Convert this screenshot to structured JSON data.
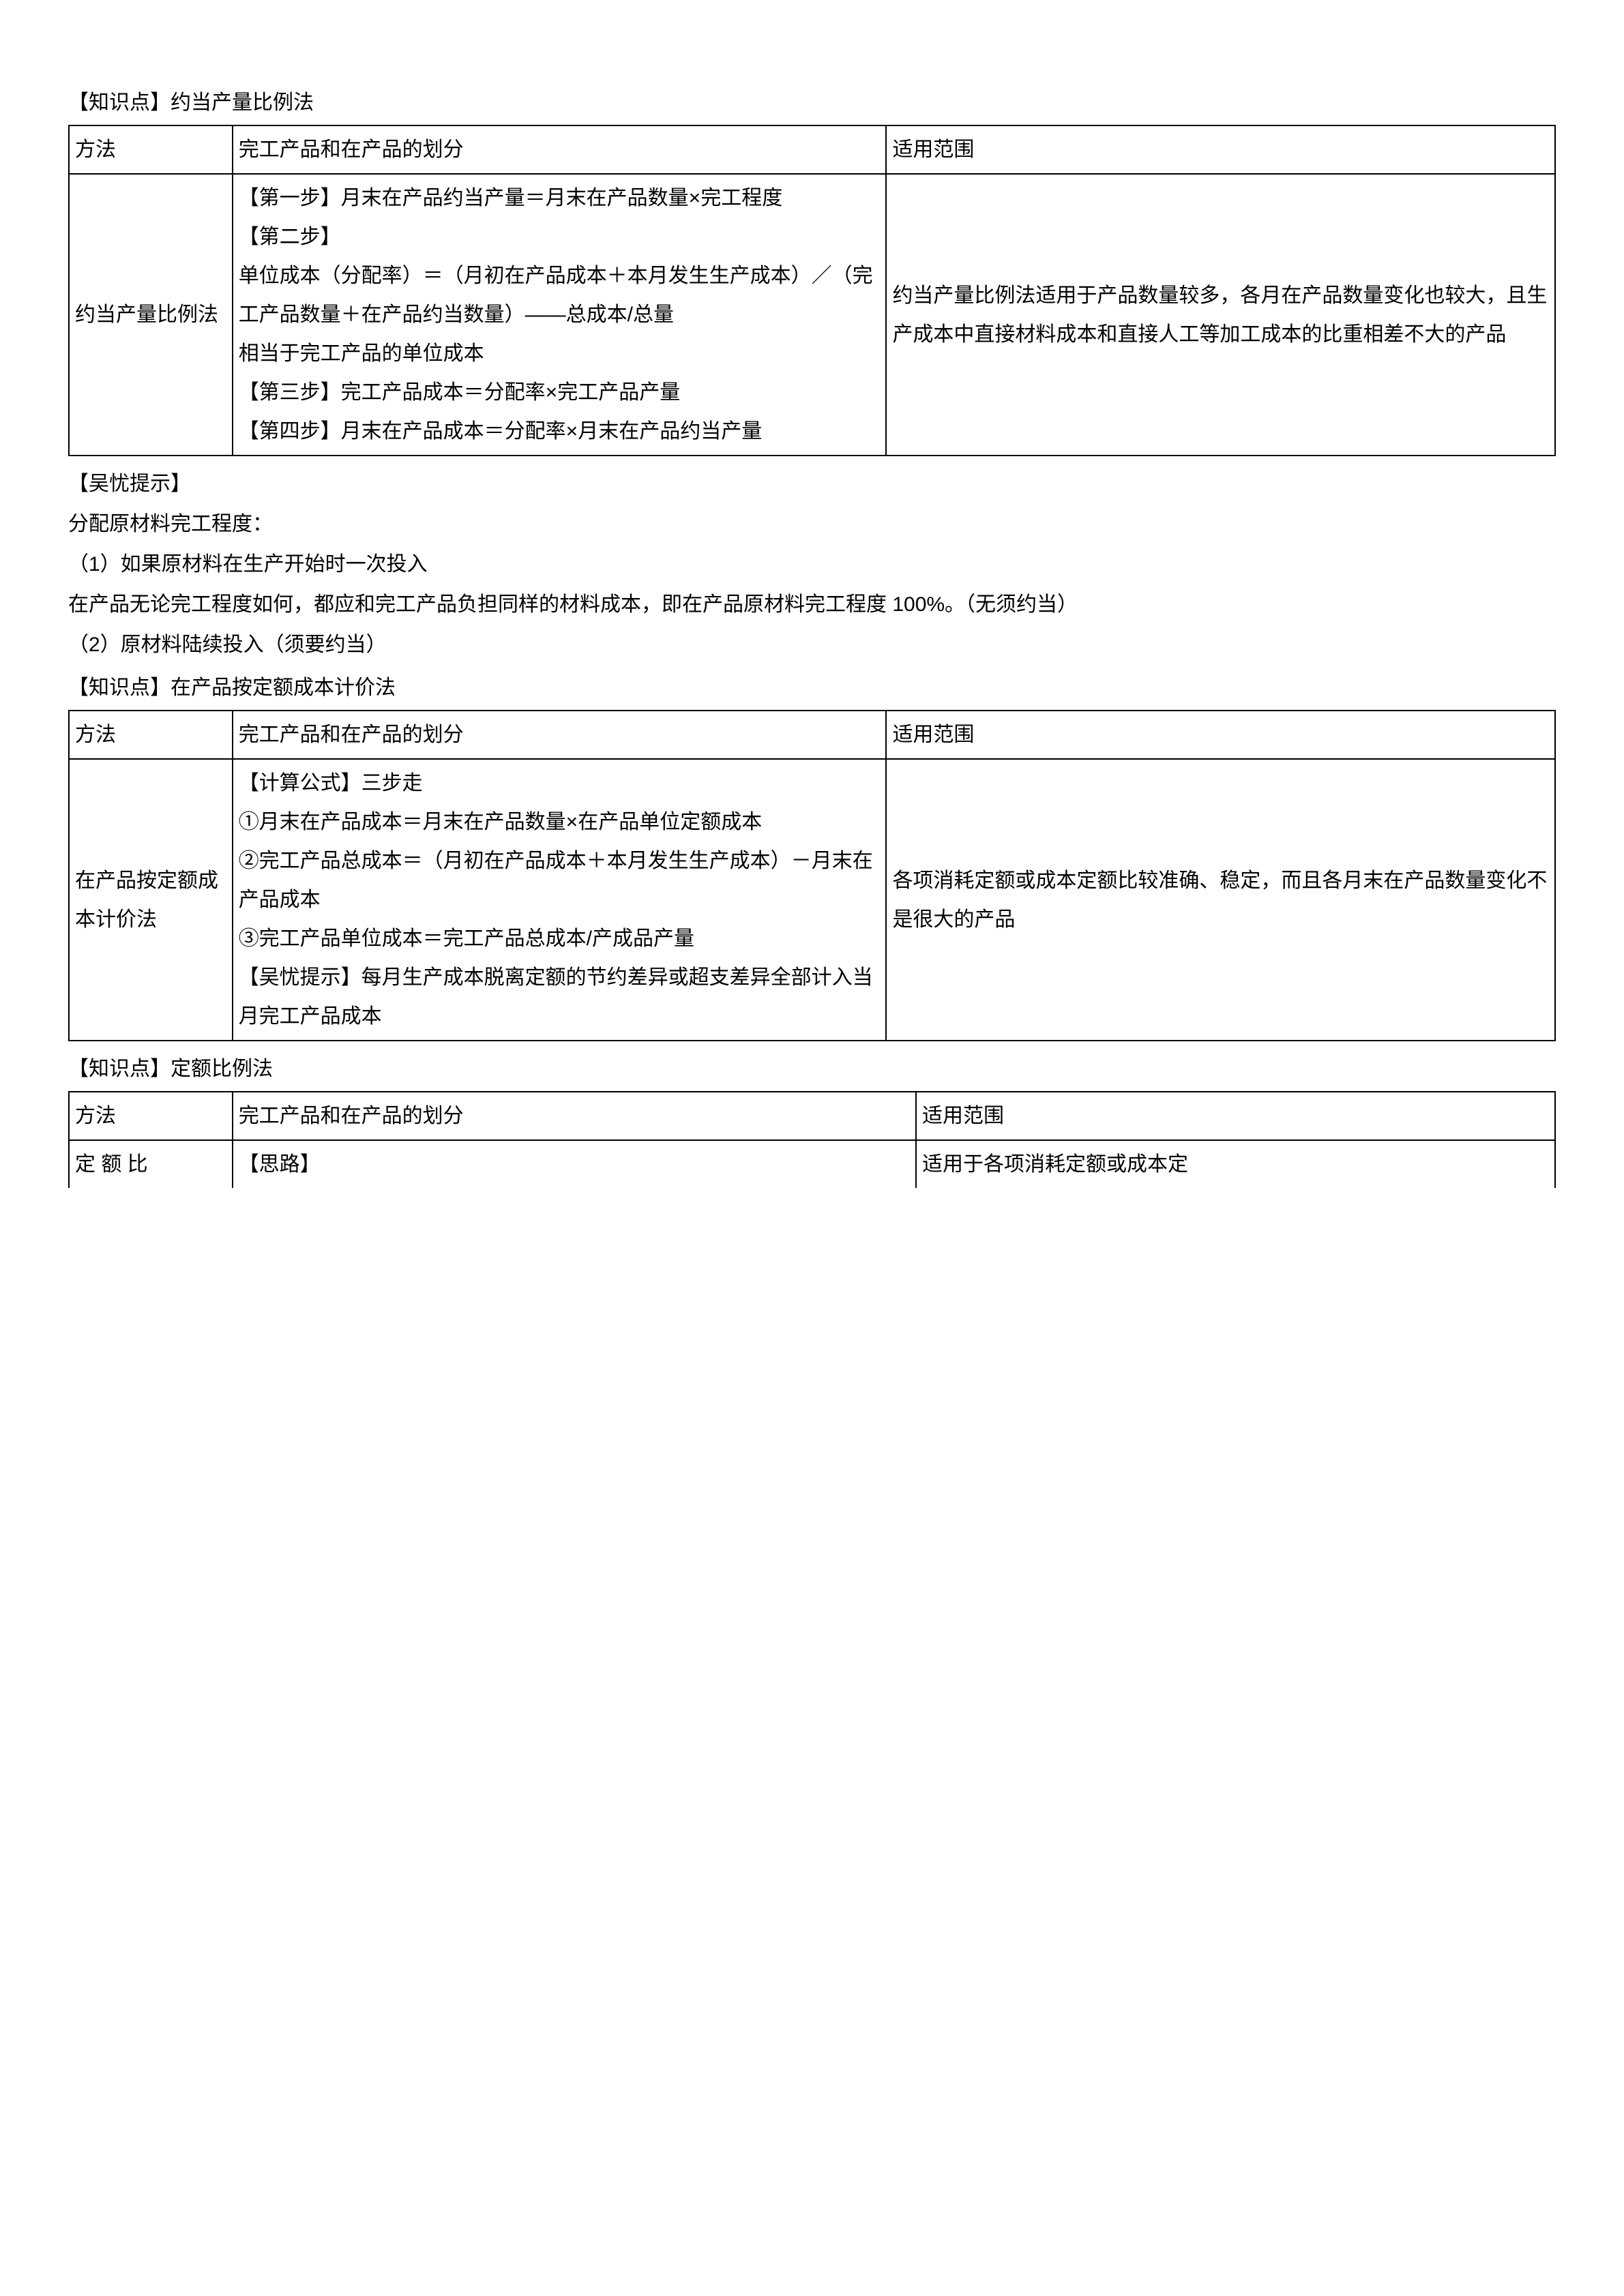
{
  "section1": {
    "title": "【知识点】约当产量比例法",
    "table": {
      "header": {
        "c1": "方法",
        "c2": "完工产品和在产品的划分",
        "c3": "适用范围"
      },
      "row": {
        "c1": "约当产量比例法",
        "c2": "【第一步】月末在产品约当产量＝月末在产品数量×完工程度\n【第二步】\n单位成本（分配率）＝（月初在产品成本＋本月发生生产成本）／（完工产品数量＋在产品约当数量）——总成本/总量\n相当于完工产品的单位成本\n【第三步】完工产品成本＝分配率×完工产品产量\n【第四步】月末在产品成本＝分配率×月末在产品约当产量",
        "c3": "约当产量比例法适用于产品数量较多，各月在产品数量变化也较大，且生产成本中直接材料成本和直接人工等加工成本的比重相差不大的产品"
      }
    }
  },
  "middle": {
    "l1": "【吴忧提示】",
    "l2": "分配原材料完工程度：",
    "l3": "（1）如果原材料在生产开始时一次投入",
    "l4": "在产品无论完工程度如何，都应和完工产品负担同样的材料成本，即在产品原材料完工程度 100%。（无须约当）",
    "l5": "（2）原材料陆续投入（须要约当）"
  },
  "section2": {
    "title": "【知识点】在产品按定额成本计价法",
    "table": {
      "header": {
        "c1": "方法",
        "c2": "完工产品和在产品的划分",
        "c3": "适用范围"
      },
      "row": {
        "c1": "在产品按定额成本计价法",
        "c2": "【计算公式】三步走\n①月末在产品成本＝月末在产品数量×在产品单位定额成本\n②完工产品总成本＝（月初在产品成本＋本月发生生产成本）－月末在产品成本\n③完工产品单位成本＝完工产品总成本/产成品产量\n【吴忧提示】每月生产成本脱离定额的节约差异或超支差异全部计入当月完工产品成本",
        "c3": "各项消耗定额或成本定额比较准确、稳定，而且各月末在产品数量变化不是很大的产品"
      }
    }
  },
  "section3": {
    "title": "【知识点】定额比例法",
    "table": {
      "header": {
        "c1": "方法",
        "c2": "完工产品和在产品的划分",
        "c3": "适用范围"
      },
      "row": {
        "c1": "定 额 比",
        "c2": "【思路】",
        "c3": "适用于各项消耗定额或成本定"
      }
    }
  }
}
